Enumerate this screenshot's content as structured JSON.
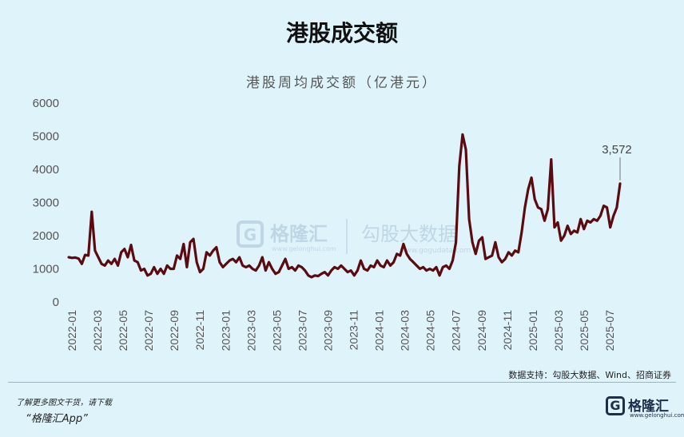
{
  "page_title": "港股成交额",
  "source_note": "数据支持：勾股大数据、Wind、招商证券",
  "footer": {
    "line1": "了解更多图文干货，请下载",
    "line2": "“格隆汇App”"
  },
  "watermark": {
    "brand": "格隆汇",
    "brand_url": "www.gelonghui.com",
    "partner": "勾股大数据",
    "partner_url": "www.gogudata.com"
  },
  "logo": {
    "text": "格隆汇",
    "url": "www.gelonghui.com"
  },
  "colors": {
    "line": "#5b0b10",
    "background": "#dff3fb"
  },
  "chart_data": {
    "type": "line",
    "title": "港股周均成交额（亿港元）",
    "xlabel": "",
    "ylabel": "",
    "ylim": [
      0,
      6000
    ],
    "yticks": [
      "0",
      "1000",
      "2000",
      "3000",
      "4000",
      "5000",
      "6000"
    ],
    "xticks": [
      "2022-01",
      "2022-03",
      "2022-05",
      "2022-07",
      "2022-09",
      "2022-11",
      "2023-01",
      "2023-03",
      "2023-05",
      "2023-07",
      "2023-09",
      "2023-11",
      "2024-01",
      "2024-03",
      "2024-05",
      "2024-07",
      "2024-09",
      "2024-11",
      "2025-01",
      "2025-03",
      "2025-05",
      "2025-07"
    ],
    "grid": false,
    "annotation": {
      "label": "3,572",
      "value": 3572
    },
    "series": [
      {
        "values": [
          1350,
          1330,
          1340,
          1310,
          1150,
          1420,
          1400,
          2720,
          1550,
          1350,
          1150,
          1100,
          1250,
          1150,
          1300,
          1100,
          1500,
          1600,
          1350,
          1720,
          1250,
          1200,
          950,
          1000,
          800,
          850,
          1050,
          850,
          1000,
          850,
          1100,
          1000,
          1000,
          1400,
          1300,
          1750,
          1050,
          1800,
          1900,
          1200,
          900,
          1000,
          1500,
          1400,
          1550,
          1650,
          1200,
          1050,
          1150,
          1250,
          1300,
          1200,
          1350,
          1100,
          1050,
          1100,
          1000,
          950,
          1100,
          1350,
          950,
          1200,
          1000,
          850,
          900,
          1100,
          1300,
          1000,
          1050,
          950,
          1100,
          1050,
          950,
          800,
          750,
          800,
          780,
          850,
          900,
          800,
          950,
          1050,
          1000,
          1100,
          1000,
          900,
          950,
          800,
          950,
          1250,
          1000,
          950,
          1100,
          1050,
          1250,
          1100,
          1050,
          1250,
          1100,
          1200,
          1450,
          1400,
          1750,
          1450,
          1300,
          1200,
          1100,
          1000,
          1050,
          950,
          1000,
          950,
          1050,
          800,
          1050,
          1100,
          1000,
          1250,
          1800,
          4100,
          5050,
          4600,
          2500,
          1800,
          1450,
          1850,
          1950,
          1300,
          1350,
          1400,
          1800,
          1350,
          1200,
          1300,
          1500,
          1400,
          1550,
          1500,
          2100,
          2850,
          3400,
          3750,
          3100,
          2850,
          2800,
          2450,
          2800,
          4300,
          2250,
          2400,
          1850,
          2000,
          2300,
          2050,
          2150,
          2100,
          2500,
          2200,
          2450,
          2400,
          2500,
          2450,
          2600,
          2900,
          2850,
          2250,
          2600,
          2850,
          3572
        ]
      }
    ]
  }
}
